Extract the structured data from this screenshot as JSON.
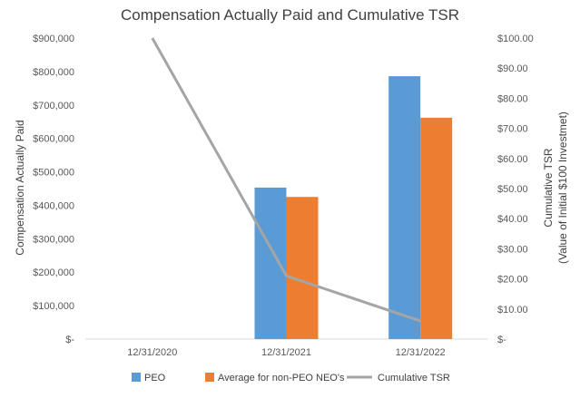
{
  "chart_data": {
    "type": "bar",
    "title": "Compensation Actually Paid and Cumulative TSR",
    "categories": [
      "12/31/2020",
      "12/31/2021",
      "12/31/2022"
    ],
    "series": [
      {
        "name": "PEO",
        "kind": "bar",
        "axis": "left",
        "color": "#5B9BD5",
        "values": [
          null,
          453000,
          786000
        ]
      },
      {
        "name": "Average for non-PEO NEO's",
        "kind": "bar",
        "axis": "left",
        "color": "#ED7D31",
        "values": [
          null,
          425000,
          662000
        ]
      },
      {
        "name": "Cumulative TSR",
        "kind": "line",
        "axis": "right",
        "color": "#A5A5A5",
        "values": [
          100.0,
          21.0,
          6.0
        ]
      }
    ],
    "y_left": {
      "label": "Compensation Actually Paid",
      "ylim": [
        0,
        900000
      ],
      "ticks": [
        0,
        100000,
        200000,
        300000,
        400000,
        500000,
        600000,
        700000,
        800000,
        900000
      ],
      "tick_labels": [
        "$-",
        "$100,000",
        "$200,000",
        "$300,000",
        "$400,000",
        "$500,000",
        "$600,000",
        "$700,000",
        "$800,000",
        "$900,000"
      ]
    },
    "y_right": {
      "label_line1": "Cumulative TSR",
      "label_line2": "(Value of Initial $100 Investmet)",
      "ylim": [
        0,
        100
      ],
      "ticks": [
        0,
        10,
        20,
        30,
        40,
        50,
        60,
        70,
        80,
        90,
        100
      ],
      "tick_labels": [
        "$-",
        "$10.00",
        "$20.00",
        "$30.00",
        "$40.00",
        "$50.00",
        "$60.00",
        "$70.00",
        "$80.00",
        "$90.00",
        "$100.00"
      ]
    },
    "grid": false,
    "legend_position": "bottom"
  }
}
